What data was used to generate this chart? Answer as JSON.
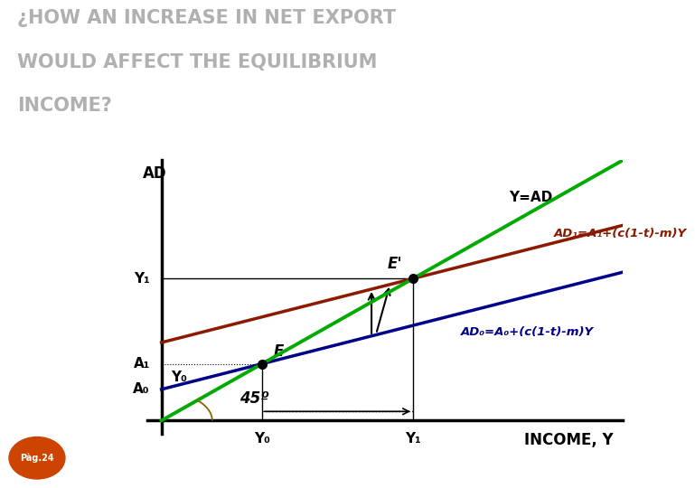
{
  "title_line1": "¿HOW AN INCREASE IN NET EXPORT",
  "title_line2": "WOULD AFFECT THE EQUILIBRIUM",
  "title_line3": "INCOME?",
  "title_fontsize": 15,
  "title_color": "#b0b0b0",
  "xlabel": "INCOME, Y",
  "ylabel": "AD",
  "background_color": "#ffffff",
  "x_min": 0,
  "x_max": 10,
  "y_min": 0,
  "y_max": 10,
  "A0": 1.2,
  "A1": 3.0,
  "slope_AD": 0.45,
  "label_Y0_text": "Y₀",
  "label_Y1_text": "Y₁",
  "label_A0_text": "A₀",
  "label_A1_text": "A₁",
  "E_label": "E",
  "E_prime_label": "E'",
  "AD0_label": "AD₀=A₀+(c(1-t)-m)Y",
  "AD1_label": "AD₁=A₁+(c(1-t)-m)Y",
  "YAD_label": "Y=AD",
  "angle_label": "45º",
  "color_45line": "#00aa00",
  "color_AD0": "#00008b",
  "color_AD1": "#8b1a00",
  "color_dot": "#000000",
  "pag_color": "#cc4400",
  "pag_text": "Pàg.24"
}
